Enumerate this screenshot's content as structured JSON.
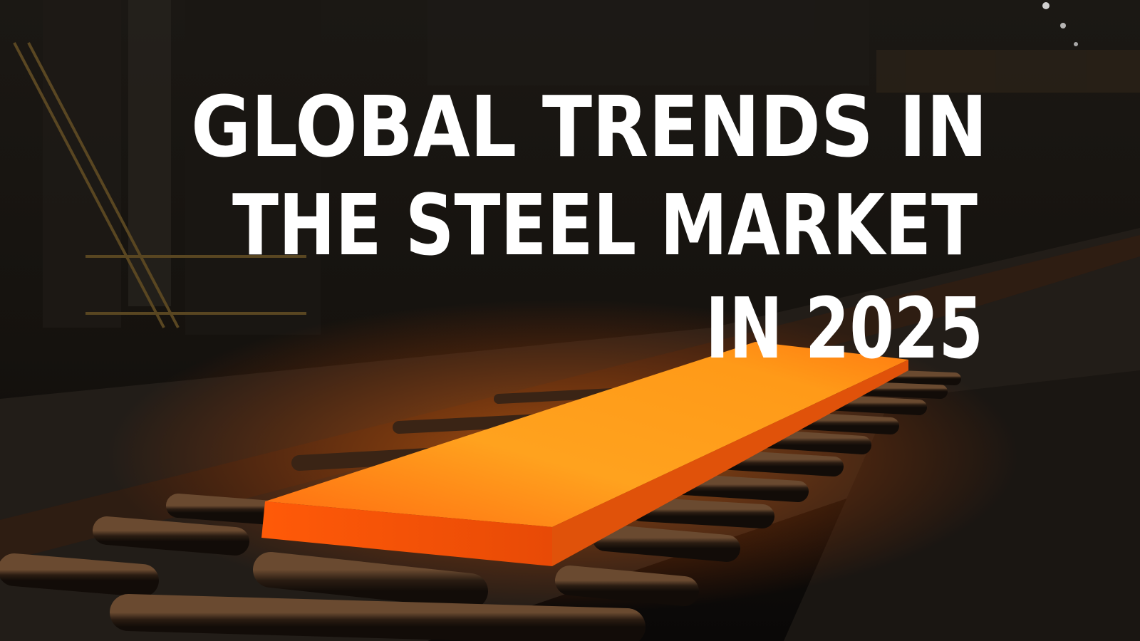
{
  "title": {
    "lines": [
      "GLOBAL TRENDS IN",
      "THE STEEL MARKET",
      "IN 2025"
    ]
  }
}
